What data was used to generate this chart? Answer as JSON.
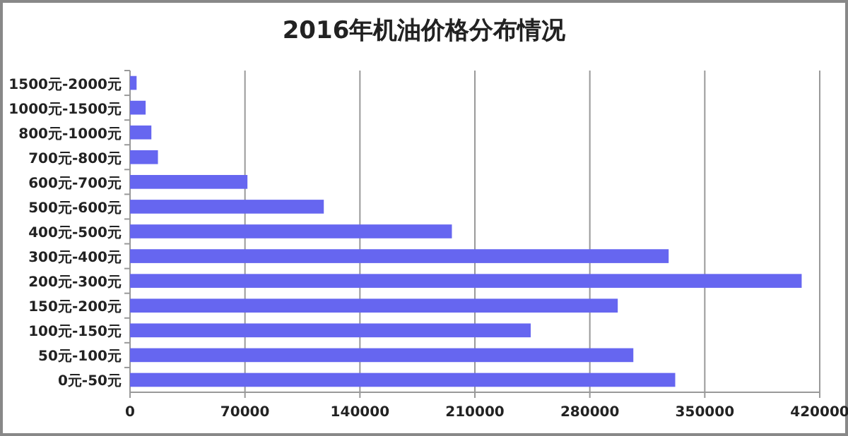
{
  "chart_data": {
    "type": "bar",
    "orientation": "horizontal",
    "title": "2016年机油价格分布情况",
    "categories": [
      "1500元-2000元",
      "1000元-1500元",
      "800元-1000元",
      "700元-800元",
      "600元-700元",
      "500元-600元",
      "400元-500元",
      "300元-400元",
      "200元-300元",
      "150元-200元",
      "100元-150元",
      "50元-100元",
      "0元-50元"
    ],
    "values": [
      4000,
      9500,
      13000,
      17000,
      71500,
      118000,
      196000,
      328000,
      409000,
      297000,
      244000,
      306500,
      332000
    ],
    "color": "#6666f0",
    "xlim": [
      0,
      420000
    ],
    "xticks": [
      0,
      70000,
      140000,
      210000,
      280000,
      350000,
      420000
    ],
    "grid": "x"
  }
}
